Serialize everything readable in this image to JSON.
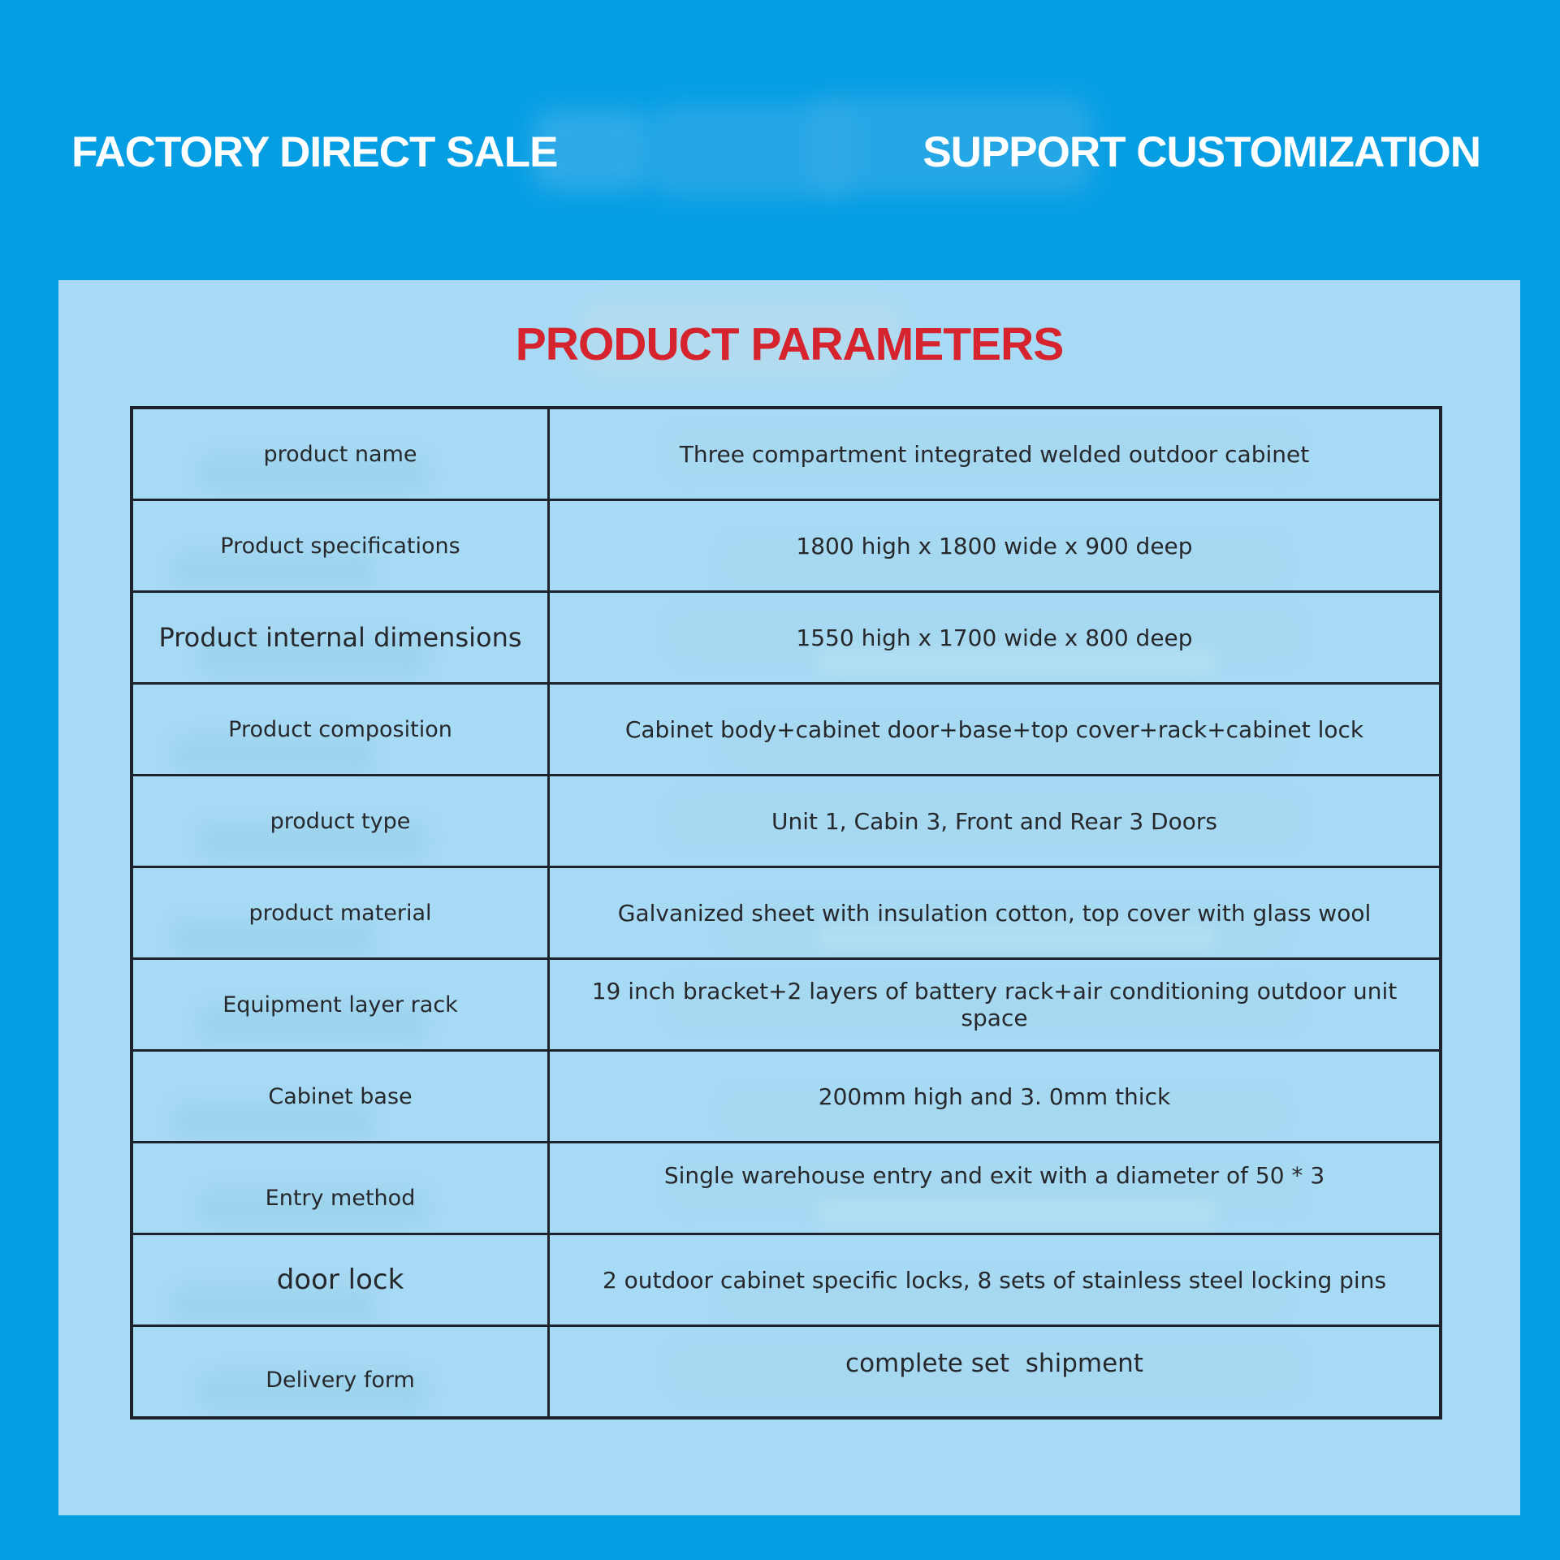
{
  "header": {
    "left_headline": "FACTORY DIRECT SALE",
    "right_headline": "SUPPORT CUSTOMIZATION"
  },
  "panel": {
    "title": "PRODUCT PARAMETERS"
  },
  "table": {
    "rows": [
      {
        "label": "product name",
        "value": "Three compartment integrated welded outdoor cabinet"
      },
      {
        "label": "Product specifications",
        "value": "1800 high x 1800 wide x 900 deep"
      },
      {
        "label": "Product internal dimensions",
        "value": "1550 high x 1700 wide x 800 deep"
      },
      {
        "label": "Product composition",
        "value": "Cabinet body+cabinet door+base+top cover+rack+cabinet lock"
      },
      {
        "label": "product type",
        "value": "Unit 1, Cabin 3, Front and Rear 3 Doors"
      },
      {
        "label": "product material",
        "value": "Galvanized sheet with insulation cotton, top cover with glass wool"
      },
      {
        "label": "Equipment layer rack",
        "value": "19 inch bracket+2 layers of battery rack+air conditioning outdoor unit space"
      },
      {
        "label": "Cabinet base",
        "value": "200mm high and 3. 0mm thick"
      },
      {
        "label": "Entry method",
        "value": "Single warehouse entry and exit with a diameter of 50 * 3"
      },
      {
        "label": "door lock",
        "value": "2 outdoor cabinet specific locks, 8 sets of stainless steel locking pins"
      },
      {
        "label": "Delivery form",
        "value": "complete set  shipment"
      }
    ]
  },
  "colors": {
    "background": "#069ee3",
    "panel": "#a7daf4",
    "title_red": "#d6242e",
    "table_border": "#1d222b",
    "table_text": "#26282c",
    "headline_text": "#ffffff"
  }
}
